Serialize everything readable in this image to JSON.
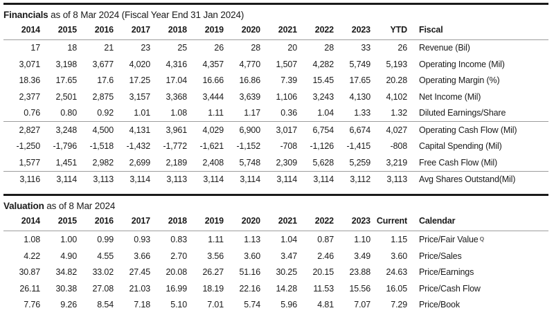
{
  "colors": {
    "text": "#1a1a1a",
    "rule_thick": "#1a1a1a",
    "rule_thin": "#9c9c9c",
    "q_icon": "#666666"
  },
  "sections": [
    {
      "id": "financials",
      "title": "Financials",
      "subtitle": "as of 8 Mar 2024 (Fiscal Year End 31 Jan 2024)",
      "columns": [
        "2014",
        "2015",
        "2016",
        "2017",
        "2018",
        "2019",
        "2020",
        "2021",
        "2022",
        "2023",
        "YTD"
      ],
      "label_header": "Fiscal",
      "groups": [
        {
          "rows": [
            {
              "label": "Revenue (Bil)",
              "values": [
                "17",
                "18",
                "21",
                "23",
                "25",
                "26",
                "28",
                "20",
                "28",
                "33",
                "26"
              ]
            },
            {
              "label": "Operating Income (Mil)",
              "values": [
                "3,071",
                "3,198",
                "3,677",
                "4,020",
                "4,316",
                "4,357",
                "4,770",
                "1,507",
                "4,282",
                "5,749",
                "5,193"
              ]
            },
            {
              "label": "Operating Margin (%)",
              "values": [
                "18.36",
                "17.65",
                "17.6",
                "17.25",
                "17.04",
                "16.66",
                "16.86",
                "7.39",
                "15.45",
                "17.65",
                "20.28"
              ]
            },
            {
              "label": "Net Income (Mil)",
              "values": [
                "2,377",
                "2,501",
                "2,875",
                "3,157",
                "3,368",
                "3,444",
                "3,639",
                "1,106",
                "3,243",
                "4,130",
                "4,102"
              ]
            },
            {
              "label": "Diluted Earnings/Share",
              "values": [
                "0.76",
                "0.80",
                "0.92",
                "1.01",
                "1.08",
                "1.11",
                "1.17",
                "0.36",
                "1.04",
                "1.33",
                "1.32"
              ]
            }
          ]
        },
        {
          "rows": [
            {
              "label": "Operating Cash Flow (Mil)",
              "values": [
                "2,827",
                "3,248",
                "4,500",
                "4,131",
                "3,961",
                "4,029",
                "6,900",
                "3,017",
                "6,754",
                "6,674",
                "4,027"
              ]
            },
            {
              "label": "Capital Spending (Mil)",
              "values": [
                "-1,250",
                "-1,796",
                "-1,518",
                "-1,432",
                "-1,772",
                "-1,621",
                "-1,152",
                "-708",
                "-1,126",
                "-1,415",
                "-808"
              ]
            },
            {
              "label": "Free Cash Flow (Mil)",
              "values": [
                "1,577",
                "1,451",
                "2,982",
                "2,699",
                "2,189",
                "2,408",
                "5,748",
                "2,309",
                "5,628",
                "5,259",
                "3,219"
              ]
            }
          ]
        },
        {
          "rows": [
            {
              "label": "Avg Shares Outstand(Mil)",
              "values": [
                "3,116",
                "3,114",
                "3,113",
                "3,114",
                "3,113",
                "3,114",
                "3,114",
                "3,114",
                "3,114",
                "3,112",
                "3,113"
              ]
            }
          ]
        }
      ]
    },
    {
      "id": "valuation",
      "title": "Valuation",
      "subtitle": "as of 8 Mar 2024",
      "columns": [
        "2014",
        "2015",
        "2016",
        "2017",
        "2018",
        "2019",
        "2020",
        "2021",
        "2022",
        "2023",
        "Current"
      ],
      "label_header": "Calendar",
      "groups": [
        {
          "rows": [
            {
              "label": "Price/Fair Value",
              "suffix_icon": "Q",
              "values": [
                "1.08",
                "1.00",
                "0.99",
                "0.93",
                "0.83",
                "1.11",
                "1.13",
                "1.04",
                "0.87",
                "1.10",
                "1.15"
              ]
            },
            {
              "label": "Price/Sales",
              "values": [
                "4.22",
                "4.90",
                "4.55",
                "3.66",
                "2.70",
                "3.56",
                "3.60",
                "3.47",
                "2.46",
                "3.49",
                "3.60"
              ]
            },
            {
              "label": "Price/Earnings",
              "values": [
                "30.87",
                "34.82",
                "33.02",
                "27.45",
                "20.08",
                "26.27",
                "51.16",
                "30.25",
                "20.15",
                "23.88",
                "24.63"
              ]
            },
            {
              "label": "Price/Cash Flow",
              "values": [
                "26.11",
                "30.38",
                "27.08",
                "21.03",
                "16.99",
                "18.19",
                "22.16",
                "14.28",
                "11.53",
                "15.56",
                "16.05"
              ]
            },
            {
              "label": "Price/Book",
              "values": [
                "7.76",
                "9.26",
                "8.54",
                "7.18",
                "5.10",
                "7.01",
                "5.74",
                "5.96",
                "4.81",
                "7.07",
                "7.29"
              ]
            }
          ]
        }
      ]
    }
  ]
}
